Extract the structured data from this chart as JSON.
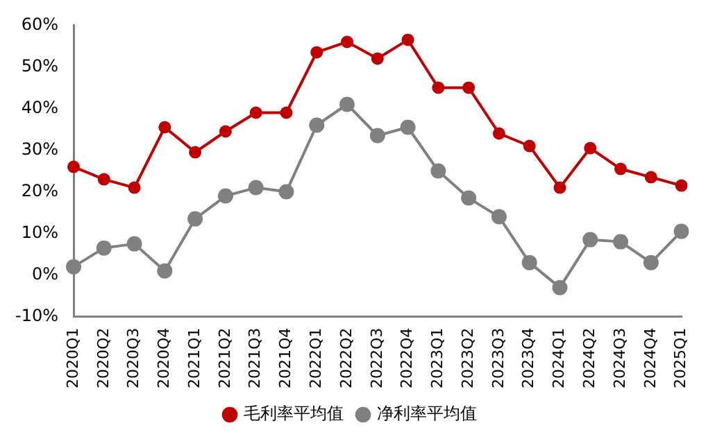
{
  "chart_data": {
    "type": "line",
    "categories": [
      "2020Q1",
      "2020Q2",
      "2020Q3",
      "2020Q4",
      "2021Q1",
      "2021Q2",
      "2021Q3",
      "2021Q4",
      "2022Q1",
      "2022Q2",
      "2022Q3",
      "2022Q4",
      "2023Q1",
      "2023Q2",
      "2023Q3",
      "2023Q4",
      "2024Q1",
      "2024Q2",
      "2024Q3",
      "2024Q4",
      "2025Q1"
    ],
    "series": [
      {
        "name": "毛利率平均值",
        "color": "#c00000",
        "values": [
          26,
          23,
          21,
          35.5,
          29.5,
          34.5,
          39,
          39,
          53.5,
          56,
          52,
          56.5,
          45,
          45,
          34,
          31,
          21,
          30.5,
          25.5,
          23.5,
          21.5
        ]
      },
      {
        "name": "净利率平均值",
        "color": "#808080",
        "values": [
          2,
          6.5,
          7.5,
          1,
          13.5,
          19,
          21,
          20,
          36,
          41,
          33.5,
          35.5,
          25,
          18.5,
          14,
          3,
          -3,
          8.5,
          8,
          3,
          10.5
        ]
      }
    ],
    "ylim": [
      -10,
      60
    ],
    "yticks": [
      {
        "value": -10,
        "label": "-10%"
      },
      {
        "value": 0,
        "label": "0%"
      },
      {
        "value": 10,
        "label": "10%"
      },
      {
        "value": 20,
        "label": "20%"
      },
      {
        "value": 30,
        "label": "30%"
      },
      {
        "value": 40,
        "label": "40%"
      },
      {
        "value": 50,
        "label": "50%"
      },
      {
        "value": 60,
        "label": "60%"
      }
    ],
    "grid": false,
    "legend": "bottom",
    "marker": "circle",
    "line_style": "solid"
  }
}
